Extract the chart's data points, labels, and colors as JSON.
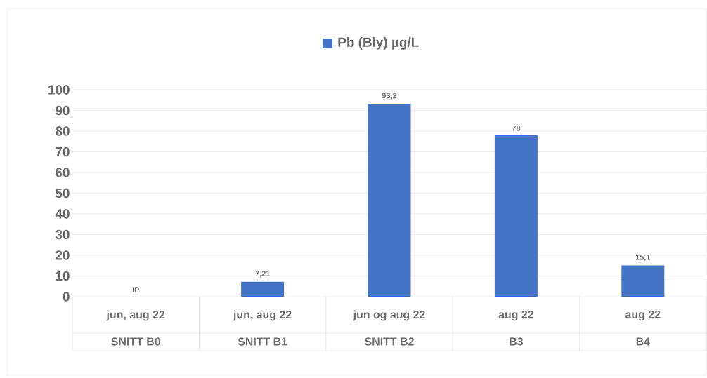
{
  "chart_data": {
    "type": "bar",
    "categories": [
      "SNITT B0",
      "SNITT B1",
      "SNITT B2",
      "B3",
      "B4"
    ],
    "series": [
      {
        "name": "Pb (Bly) µg/L",
        "color": "#4472c4",
        "values": [
          null,
          7.21,
          93.2,
          78,
          15.1
        ],
        "value_labels": [
          "IP",
          "7,21",
          "93,2",
          "78",
          "15,1"
        ]
      }
    ],
    "annotations": [
      "jun, aug 22",
      "jun, aug 22",
      "jun og aug 22",
      "aug 22",
      "aug 22"
    ],
    "ylim": [
      0,
      100
    ],
    "yticks": [
      0,
      10,
      20,
      30,
      40,
      50,
      60,
      70,
      80,
      90,
      100
    ],
    "grid": "y",
    "legend": "top"
  }
}
